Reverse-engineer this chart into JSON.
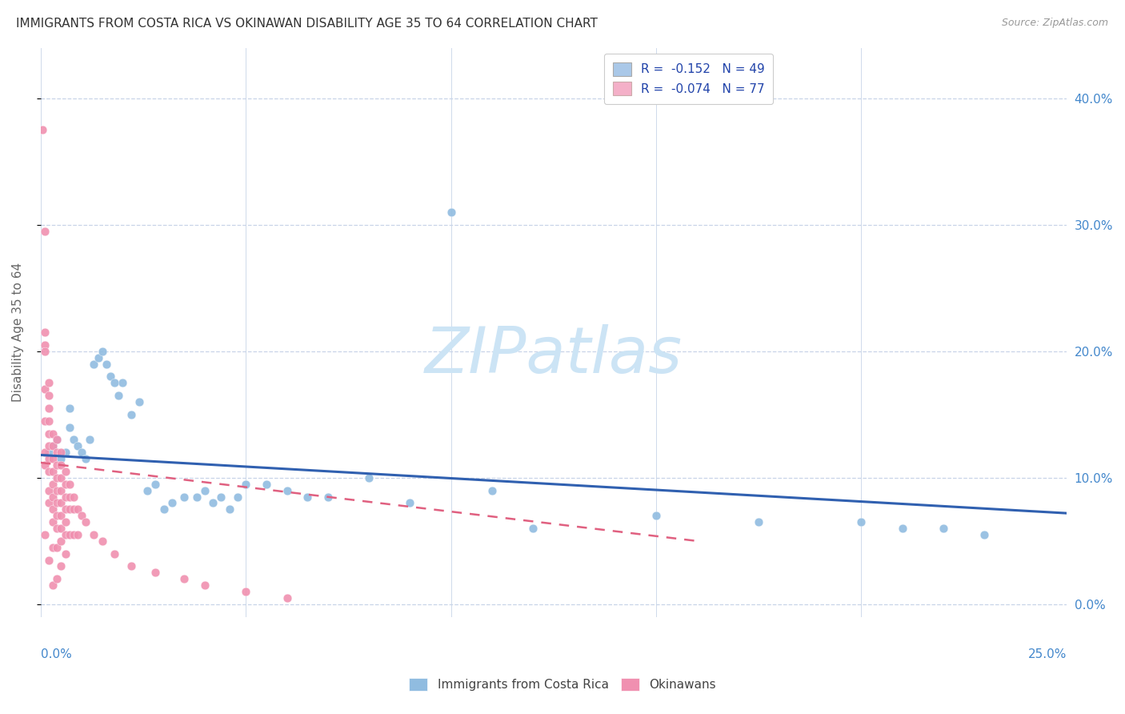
{
  "title": "IMMIGRANTS FROM COSTA RICA VS OKINAWAN DISABILITY AGE 35 TO 64 CORRELATION CHART",
  "source": "Source: ZipAtlas.com",
  "ylabel": "Disability Age 35 to 64",
  "ytick_labels_right": [
    "0.0%",
    "10.0%",
    "20.0%",
    "30.0%",
    "40.0%"
  ],
  "ytick_values": [
    0.0,
    0.1,
    0.2,
    0.3,
    0.4
  ],
  "xlim": [
    0.0,
    0.25
  ],
  "ylim": [
    -0.01,
    0.44
  ],
  "legend1_label": "R =  -0.152   N = 49",
  "legend2_label": "R =  -0.074   N = 77",
  "legend1_color": "#aac8e8",
  "legend2_color": "#f4b0c8",
  "dot_color_blue": "#90bce0",
  "dot_color_pink": "#f090b0",
  "trend_blue": "#3060b0",
  "trend_pink": "#e06080",
  "watermark_color": "#cce4f5",
  "background_color": "#ffffff",
  "grid_color": "#c8d4e8",
  "tick_color_right": "#4488cc",
  "tick_color_left": "#888888",
  "blue_x": [
    0.002,
    0.003,
    0.004,
    0.005,
    0.006,
    0.007,
    0.007,
    0.008,
    0.009,
    0.01,
    0.011,
    0.012,
    0.013,
    0.014,
    0.015,
    0.016,
    0.017,
    0.018,
    0.019,
    0.02,
    0.022,
    0.024,
    0.026,
    0.028,
    0.03,
    0.032,
    0.035,
    0.038,
    0.04,
    0.042,
    0.044,
    0.046,
    0.048,
    0.05,
    0.055,
    0.06,
    0.065,
    0.07,
    0.08,
    0.09,
    0.1,
    0.11,
    0.12,
    0.15,
    0.175,
    0.2,
    0.21,
    0.22,
    0.23
  ],
  "blue_y": [
    0.12,
    0.125,
    0.13,
    0.115,
    0.12,
    0.155,
    0.14,
    0.13,
    0.125,
    0.12,
    0.115,
    0.13,
    0.19,
    0.195,
    0.2,
    0.19,
    0.18,
    0.175,
    0.165,
    0.175,
    0.15,
    0.16,
    0.09,
    0.095,
    0.075,
    0.08,
    0.085,
    0.085,
    0.09,
    0.08,
    0.085,
    0.075,
    0.085,
    0.095,
    0.095,
    0.09,
    0.085,
    0.085,
    0.1,
    0.08,
    0.31,
    0.09,
    0.06,
    0.07,
    0.065,
    0.065,
    0.06,
    0.06,
    0.055
  ],
  "pink_x": [
    0.0005,
    0.001,
    0.001,
    0.001,
    0.001,
    0.001,
    0.001,
    0.001,
    0.001,
    0.001,
    0.002,
    0.002,
    0.002,
    0.002,
    0.002,
    0.002,
    0.002,
    0.002,
    0.002,
    0.002,
    0.002,
    0.003,
    0.003,
    0.003,
    0.003,
    0.003,
    0.003,
    0.003,
    0.003,
    0.003,
    0.003,
    0.004,
    0.004,
    0.004,
    0.004,
    0.004,
    0.004,
    0.004,
    0.004,
    0.004,
    0.004,
    0.005,
    0.005,
    0.005,
    0.005,
    0.005,
    0.005,
    0.005,
    0.005,
    0.005,
    0.006,
    0.006,
    0.006,
    0.006,
    0.006,
    0.006,
    0.006,
    0.007,
    0.007,
    0.007,
    0.007,
    0.008,
    0.008,
    0.008,
    0.009,
    0.009,
    0.01,
    0.011,
    0.013,
    0.015,
    0.018,
    0.022,
    0.028,
    0.035,
    0.04,
    0.05,
    0.06
  ],
  "pink_y": [
    0.375,
    0.295,
    0.215,
    0.205,
    0.2,
    0.17,
    0.145,
    0.12,
    0.11,
    0.055,
    0.175,
    0.165,
    0.155,
    0.145,
    0.135,
    0.125,
    0.115,
    0.105,
    0.09,
    0.08,
    0.035,
    0.135,
    0.125,
    0.115,
    0.105,
    0.095,
    0.085,
    0.075,
    0.065,
    0.045,
    0.015,
    0.13,
    0.12,
    0.11,
    0.1,
    0.09,
    0.08,
    0.07,
    0.06,
    0.045,
    0.02,
    0.12,
    0.11,
    0.1,
    0.09,
    0.08,
    0.07,
    0.06,
    0.05,
    0.03,
    0.105,
    0.095,
    0.085,
    0.075,
    0.065,
    0.055,
    0.04,
    0.095,
    0.085,
    0.075,
    0.055,
    0.085,
    0.075,
    0.055,
    0.075,
    0.055,
    0.07,
    0.065,
    0.055,
    0.05,
    0.04,
    0.03,
    0.025,
    0.02,
    0.015,
    0.01,
    0.005
  ],
  "blue_trend_x": [
    0.0,
    0.25
  ],
  "blue_trend_y": [
    0.118,
    0.072
  ],
  "pink_trend_x": [
    0.0,
    0.16
  ],
  "pink_trend_y": [
    0.112,
    0.05
  ]
}
